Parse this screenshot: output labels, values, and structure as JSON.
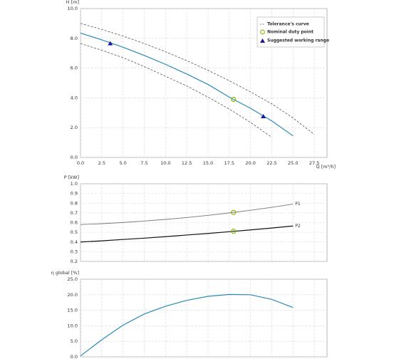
{
  "chart_data": [
    {
      "type": "line",
      "y_label": "H [m]",
      "x_label": "Q [m³/h]",
      "xlim": [
        0,
        29
      ],
      "ylim": [
        0,
        10
      ],
      "xticks": [
        {
          "value": 0,
          "label": "0.0"
        },
        2.5,
        {
          "value": 5,
          "label": "5.0"
        },
        7.5,
        {
          "value": 10,
          "label": "10.0"
        },
        12.5,
        {
          "value": 15,
          "label": "15.0"
        },
        17.5,
        {
          "value": 20,
          "label": "20.0"
        },
        22.5,
        {
          "value": 25,
          "label": "25.0"
        },
        27.5
      ],
      "yticks": [
        {
          "value": 0,
          "label": "0.0"
        },
        {
          "value": 2,
          "label": "2.0"
        },
        {
          "value": 4,
          "label": "4.0"
        },
        {
          "value": 6,
          "label": "6.0"
        },
        {
          "value": 8,
          "label": "8.0"
        },
        {
          "value": 10,
          "label": "10.0"
        }
      ],
      "curve": {
        "color": "#2a8ab8",
        "x": [
          0,
          2.5,
          5,
          7.5,
          10,
          12.5,
          15,
          17.5,
          20,
          22.5,
          25
        ],
        "values": [
          8.35,
          7.9,
          7.4,
          6.85,
          6.25,
          5.6,
          4.9,
          4.05,
          3.3,
          2.45,
          1.45
        ]
      },
      "tolerance": {
        "name": "Tolerance's curve",
        "color": "#555555",
        "upper": {
          "x": [
            0,
            2.5,
            5,
            7.5,
            10,
            12.5,
            15,
            17.5,
            20,
            22.5,
            25,
            27.5
          ],
          "values": [
            9.0,
            8.6,
            8.15,
            7.65,
            7.1,
            6.5,
            5.85,
            5.15,
            4.4,
            3.6,
            2.65,
            1.55
          ]
        },
        "lower": {
          "x": [
            0,
            2.5,
            5,
            7.5,
            10,
            12.5,
            15,
            17.5,
            20,
            22.5
          ],
          "values": [
            7.65,
            7.2,
            6.7,
            6.1,
            5.45,
            4.8,
            4.05,
            3.25,
            2.35,
            1.35
          ]
        }
      },
      "duty_point": {
        "name": "Nominal duty point",
        "color": "#8ab800",
        "x": 18,
        "value": 3.9
      },
      "working_range": {
        "name": "Suggested working range",
        "color": "#1a1aa0",
        "x": [
          3.5,
          21.5
        ],
        "values": [
          7.65,
          2.75
        ]
      }
    },
    {
      "type": "line",
      "y_label": "P [kW]",
      "xlim": [
        0,
        29
      ],
      "ylim": [
        0.2,
        1.0
      ],
      "yticks": [
        0.2,
        0.3,
        0.4,
        0.5,
        0.6,
        0.7,
        0.8,
        0.9,
        {
          "value": 1.0,
          "label": "1.0"
        }
      ],
      "x": [
        0,
        2.5,
        5,
        7.5,
        10,
        12.5,
        15,
        17.5,
        20,
        22.5,
        25
      ],
      "series": [
        {
          "name": "P1",
          "color": "#777777",
          "values": [
            0.58,
            0.589,
            0.601,
            0.616,
            0.633,
            0.652,
            0.675,
            0.7,
            0.727,
            0.757,
            0.79
          ]
        },
        {
          "name": "P2",
          "color": "#111111",
          "values": [
            0.4,
            0.412,
            0.426,
            0.44,
            0.455,
            0.472,
            0.488,
            0.506,
            0.525,
            0.544,
            0.565
          ]
        }
      ],
      "duty_point": {
        "color": "#8ab800",
        "x": 18,
        "values": [
          0.705,
          0.51
        ]
      }
    },
    {
      "type": "line",
      "y_label": "η global [%]",
      "xlim": [
        0,
        29
      ],
      "ylim": [
        0,
        25
      ],
      "yticks": [
        {
          "value": 0,
          "label": "0.0"
        },
        {
          "value": 5,
          "label": "5.0"
        },
        {
          "value": 10,
          "label": "10.0"
        },
        {
          "value": 15,
          "label": "15.0"
        },
        {
          "value": 20,
          "label": "20.0"
        },
        {
          "value": 25,
          "label": "25.0"
        }
      ],
      "curve": {
        "color": "#2a8ab8",
        "x": [
          0,
          2.5,
          5,
          7.5,
          10,
          12.5,
          15,
          17.5,
          20,
          22.5,
          25
        ],
        "values": [
          0.3,
          5.5,
          10.2,
          13.8,
          16.3,
          18.2,
          19.5,
          20.1,
          20.0,
          18.5,
          15.9
        ]
      }
    }
  ]
}
